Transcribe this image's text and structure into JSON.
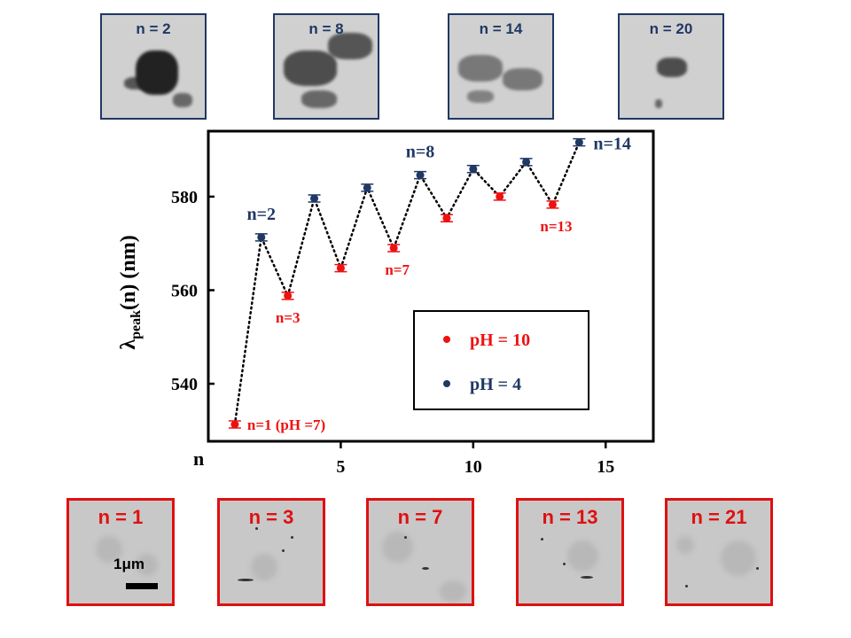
{
  "chart_data": {
    "type": "scatter",
    "title": "",
    "xlabel": "n",
    "ylabel_main": "λ",
    "ylabel_sub": "peak",
    "ylabel_rest": "(n) (nm)",
    "xlim": [
      0,
      16.8
    ],
    "ylim": [
      527.7,
      594
    ],
    "xticks": [
      "5",
      "10",
      "15"
    ],
    "xtick_values": [
      5,
      10,
      15
    ],
    "yticks": [
      "540",
      "560",
      "580"
    ],
    "ytick_values": [
      540,
      560,
      580
    ],
    "legend_position": "center-right",
    "series": [
      {
        "name": "pH = 10",
        "color": "#ee1111",
        "x": [
          1,
          3,
          5,
          7,
          9,
          11,
          13
        ],
        "y": [
          531.3,
          558.8,
          564.7,
          569.0,
          575.4,
          580.0,
          578.3
        ]
      },
      {
        "name": "pH = 4",
        "color": "#1f3864",
        "x": [
          2,
          4,
          6,
          8,
          10,
          12,
          14
        ],
        "y": [
          571.3,
          579.6,
          581.9,
          584.6,
          585.9,
          587.4,
          591.6
        ]
      }
    ],
    "annotations": [
      {
        "text": "n=1 (pH =7)",
        "n": 1,
        "color": "#ee1111"
      },
      {
        "text": "n=2",
        "n": 2,
        "color": "#1f3864"
      },
      {
        "text": "n=3",
        "n": 3,
        "color": "#ee1111"
      },
      {
        "text": "n=7",
        "n": 7,
        "color": "#ee1111"
      },
      {
        "text": "n=8",
        "n": 8,
        "color": "#1f3864"
      },
      {
        "text": "n=13",
        "n": 13,
        "color": "#ee1111"
      },
      {
        "text": "n=14",
        "n": 14,
        "color": "#1f3864"
      }
    ]
  },
  "top_images": [
    {
      "label": "n = 2"
    },
    {
      "label": "n = 8"
    },
    {
      "label": "n = 14"
    },
    {
      "label": "n = 20"
    }
  ],
  "bottom_images": [
    {
      "label": "n = 1"
    },
    {
      "label": "n = 3"
    },
    {
      "label": "n = 7"
    },
    {
      "label": "n = 13"
    },
    {
      "label": "n = 21"
    }
  ],
  "scale_bar": "1μm"
}
